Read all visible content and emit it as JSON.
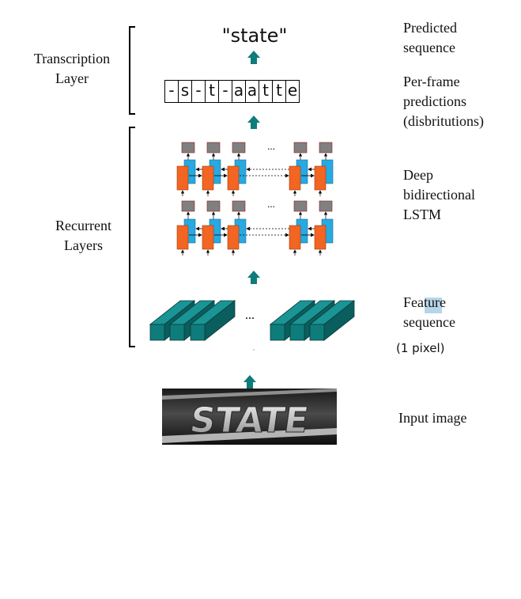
{
  "left_labels": {
    "transcription": [
      "Transcription",
      "Layer"
    ],
    "recurrent": [
      "Recurrent",
      "Layers"
    ]
  },
  "output_word": "\"state\"",
  "per_frame_predictions": [
    "-",
    "s",
    "-",
    "t",
    "-",
    "a",
    "a",
    "t",
    "t",
    "e"
  ],
  "right_labels": {
    "predicted": [
      "Predicted",
      "sequence"
    ],
    "per_frame": [
      "Per-frame",
      "predictions",
      "(disbritutions)"
    ],
    "lstm": [
      "Deep",
      "bidirectional",
      "LSTM"
    ],
    "feature": [
      "Feature",
      "sequence"
    ],
    "feature_note": "(1 pixel)",
    "input": "Input image"
  },
  "ellipsis": "...",
  "input_image_text": "STATE",
  "colors": {
    "arrow": "#0e7c7b",
    "lstm_forward": "#f26522",
    "lstm_backward": "#27a9e1",
    "lstm_output": "#808080",
    "feature_block": "#0e7c7b",
    "feature_highlight": "#b7d5ea"
  }
}
